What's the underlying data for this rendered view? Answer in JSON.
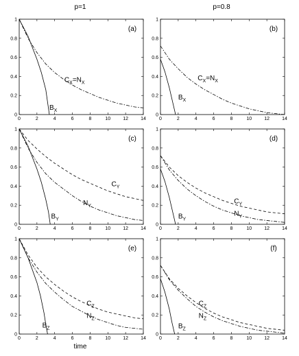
{
  "figure": {
    "column_titles": [
      "p=1",
      "p=0.8"
    ],
    "xlabel": "time"
  },
  "colors": {
    "axes": "#000000",
    "curve": "#000000",
    "background": "#ffffff"
  },
  "chart_data": [
    {
      "type": "line",
      "panel_label": "(a)",
      "column_title": "p=1",
      "xlim": [
        0,
        14
      ],
      "ylim": [
        0,
        1
      ],
      "xticks": [
        0,
        2,
        4,
        6,
        8,
        10,
        12,
        14
      ],
      "yticks": [
        0,
        0.2,
        0.4,
        0.6,
        0.8,
        1
      ],
      "series": [
        {
          "name": "B_X",
          "style": "solid",
          "x": [
            0,
            1,
            2,
            2.5,
            3,
            3.2,
            3.4
          ],
          "y": [
            1,
            0.82,
            0.58,
            0.44,
            0.26,
            0.13,
            0.0
          ]
        },
        {
          "name": "C_X=N_X",
          "style": "dash-dot",
          "x": [
            0,
            1,
            2,
            3,
            4,
            5,
            6,
            7,
            8,
            9,
            10,
            11,
            12,
            13,
            14
          ],
          "y": [
            1,
            0.8,
            0.65,
            0.53,
            0.44,
            0.37,
            0.31,
            0.26,
            0.22,
            0.18,
            0.15,
            0.12,
            0.1,
            0.08,
            0.07
          ]
        }
      ],
      "annotations": [
        {
          "main": "C",
          "sub": "X",
          "tail": "=N",
          "tail_sub": "X",
          "x": 5.1,
          "y": 0.34
        },
        {
          "main": "B",
          "sub": "X",
          "x": 3.4,
          "y": 0.05
        }
      ]
    },
    {
      "type": "line",
      "panel_label": "(b)",
      "column_title": "p=0.8",
      "xlim": [
        0,
        14
      ],
      "ylim": [
        0,
        1
      ],
      "xticks": [
        0,
        2,
        4,
        6,
        8,
        10,
        12,
        14
      ],
      "yticks": [
        0,
        0.2,
        0.4,
        0.6,
        0.8,
        1
      ],
      "series": [
        {
          "name": "B_X",
          "style": "solid",
          "x": [
            0,
            0.5,
            1,
            1.4,
            1.7
          ],
          "y": [
            0.58,
            0.45,
            0.28,
            0.12,
            0.0
          ]
        },
        {
          "name": "C_X=N_X",
          "style": "dash-dot",
          "x": [
            0,
            1,
            2,
            3,
            4,
            5,
            6,
            7,
            8,
            9,
            10,
            11,
            12,
            13,
            14
          ],
          "y": [
            0.72,
            0.58,
            0.48,
            0.39,
            0.32,
            0.26,
            0.21,
            0.16,
            0.12,
            0.09,
            0.06,
            0.04,
            0.02,
            0.01,
            0.0
          ]
        }
      ],
      "annotations": [
        {
          "main": "C",
          "sub": "X",
          "tail": "=N",
          "tail_sub": "X",
          "x": 4.2,
          "y": 0.36
        },
        {
          "main": "B",
          "sub": "X",
          "x": 2.0,
          "y": 0.16
        }
      ]
    },
    {
      "type": "line",
      "panel_label": "(c)",
      "column_title": "p=1",
      "xlim": [
        0,
        14
      ],
      "ylim": [
        0,
        1
      ],
      "xticks": [
        0,
        2,
        4,
        6,
        8,
        10,
        12,
        14
      ],
      "yticks": [
        0,
        0.2,
        0.4,
        0.6,
        0.8,
        1
      ],
      "series": [
        {
          "name": "B_Y",
          "style": "solid",
          "x": [
            0,
            1,
            2,
            2.5,
            3,
            3.3,
            3.5
          ],
          "y": [
            1,
            0.82,
            0.58,
            0.44,
            0.26,
            0.13,
            0.0
          ]
        },
        {
          "name": "C_Y",
          "style": "dashed",
          "x": [
            0,
            1,
            2,
            3,
            4,
            5,
            6,
            7,
            8,
            9,
            10,
            11,
            12,
            13,
            14
          ],
          "y": [
            1,
            0.88,
            0.79,
            0.71,
            0.64,
            0.58,
            0.52,
            0.47,
            0.43,
            0.39,
            0.35,
            0.32,
            0.29,
            0.27,
            0.25
          ]
        },
        {
          "name": "N_Y",
          "style": "dash-dot",
          "x": [
            0,
            1,
            2,
            3,
            4,
            5,
            6,
            7,
            8,
            9,
            10,
            11,
            12,
            13,
            14
          ],
          "y": [
            1,
            0.8,
            0.65,
            0.53,
            0.44,
            0.37,
            0.3,
            0.24,
            0.19,
            0.15,
            0.12,
            0.09,
            0.07,
            0.05,
            0.04
          ]
        }
      ],
      "annotations": [
        {
          "main": "C",
          "sub": "Y",
          "x": 10.4,
          "y": 0.4
        },
        {
          "main": "N",
          "sub": "Y",
          "x": 7.2,
          "y": 0.2
        },
        {
          "main": "B",
          "sub": "Y",
          "x": 3.6,
          "y": 0.06
        }
      ]
    },
    {
      "type": "line",
      "panel_label": "(d)",
      "column_title": "p=0.8",
      "xlim": [
        0,
        14
      ],
      "ylim": [
        0,
        1
      ],
      "xticks": [
        0,
        2,
        4,
        6,
        8,
        10,
        12,
        14
      ],
      "yticks": [
        0,
        0.2,
        0.4,
        0.6,
        0.8,
        1
      ],
      "series": [
        {
          "name": "B_Y",
          "style": "solid",
          "x": [
            0,
            0.5,
            1,
            1.4,
            1.7
          ],
          "y": [
            0.58,
            0.45,
            0.28,
            0.12,
            0.0
          ]
        },
        {
          "name": "C_Y",
          "style": "dashed",
          "x": [
            0,
            1,
            2,
            3,
            4,
            5,
            6,
            7,
            8,
            9,
            10,
            11,
            12,
            13,
            14
          ],
          "y": [
            0.72,
            0.6,
            0.51,
            0.44,
            0.38,
            0.33,
            0.29,
            0.25,
            0.22,
            0.19,
            0.17,
            0.15,
            0.13,
            0.12,
            0.11
          ]
        },
        {
          "name": "N_Y",
          "style": "dash-dot",
          "x": [
            0,
            1,
            2,
            3,
            4,
            5,
            6,
            7,
            8,
            9,
            10,
            11,
            12,
            13,
            14
          ],
          "y": [
            0.72,
            0.57,
            0.46,
            0.37,
            0.3,
            0.24,
            0.19,
            0.15,
            0.12,
            0.09,
            0.07,
            0.05,
            0.04,
            0.03,
            0.02
          ]
        }
      ],
      "annotations": [
        {
          "main": "C",
          "sub": "Y",
          "x": 8.3,
          "y": 0.22
        },
        {
          "main": "N",
          "sub": "Y",
          "x": 8.3,
          "y": 0.09
        },
        {
          "main": "B",
          "sub": "Y",
          "x": 2.0,
          "y": 0.06
        }
      ]
    },
    {
      "type": "line",
      "panel_label": "(e)",
      "column_title": "p=1",
      "xlim": [
        0,
        14
      ],
      "ylim": [
        0,
        1
      ],
      "xticks": [
        0,
        2,
        4,
        6,
        8,
        10,
        12,
        14
      ],
      "yticks": [
        0,
        0.2,
        0.4,
        0.6,
        0.8,
        1
      ],
      "series": [
        {
          "name": "B_Z",
          "style": "solid",
          "x": [
            0,
            1,
            2,
            2.4,
            2.8,
            3.0,
            3.2
          ],
          "y": [
            1,
            0.8,
            0.54,
            0.4,
            0.22,
            0.1,
            0.0
          ]
        },
        {
          "name": "C_Z",
          "style": "dashed",
          "x": [
            0,
            1,
            2,
            3,
            4,
            5,
            6,
            7,
            8,
            9,
            10,
            11,
            12,
            13,
            14
          ],
          "y": [
            1,
            0.83,
            0.7,
            0.6,
            0.52,
            0.45,
            0.39,
            0.34,
            0.3,
            0.26,
            0.23,
            0.21,
            0.19,
            0.17,
            0.16
          ]
        },
        {
          "name": "N_Z",
          "style": "dash-dot",
          "x": [
            0,
            1,
            2,
            3,
            4,
            5,
            6,
            7,
            8,
            9,
            10,
            11,
            12,
            13,
            14
          ],
          "y": [
            1,
            0.8,
            0.65,
            0.53,
            0.44,
            0.36,
            0.29,
            0.24,
            0.19,
            0.15,
            0.12,
            0.09,
            0.07,
            0.06,
            0.05
          ]
        }
      ],
      "annotations": [
        {
          "main": "C",
          "sub": "Z",
          "x": 7.6,
          "y": 0.3
        },
        {
          "main": "N",
          "sub": "Z",
          "x": 7.6,
          "y": 0.17
        },
        {
          "main": "B",
          "sub": "Z",
          "x": 2.6,
          "y": 0.07
        }
      ]
    },
    {
      "type": "line",
      "panel_label": "(f)",
      "column_title": "p=0.8",
      "xlim": [
        0,
        14
      ],
      "ylim": [
        0,
        1
      ],
      "xticks": [
        0,
        2,
        4,
        6,
        8,
        10,
        12,
        14
      ],
      "yticks": [
        0,
        0.2,
        0.4,
        0.6,
        0.8,
        1
      ],
      "series": [
        {
          "name": "B_Z",
          "style": "solid",
          "x": [
            0,
            0.5,
            1,
            1.3,
            1.6
          ],
          "y": [
            0.58,
            0.44,
            0.26,
            0.12,
            0.0
          ]
        },
        {
          "name": "C_Z",
          "style": "dashed",
          "x": [
            0,
            1,
            2,
            3,
            4,
            5,
            6,
            7,
            8,
            9,
            10,
            11,
            12,
            13,
            14
          ],
          "y": [
            0.72,
            0.58,
            0.48,
            0.4,
            0.33,
            0.27,
            0.22,
            0.18,
            0.15,
            0.12,
            0.1,
            0.08,
            0.06,
            0.05,
            0.04
          ]
        },
        {
          "name": "N_Z",
          "style": "dash-dot",
          "x": [
            0,
            1,
            2,
            3,
            4,
            5,
            6,
            7,
            8,
            9,
            10,
            11,
            12,
            13,
            14
          ],
          "y": [
            0.72,
            0.57,
            0.46,
            0.37,
            0.29,
            0.23,
            0.18,
            0.14,
            0.11,
            0.08,
            0.06,
            0.04,
            0.03,
            0.02,
            0.01
          ]
        }
      ],
      "annotations": [
        {
          "main": "C",
          "sub": "Z",
          "x": 4.3,
          "y": 0.3
        },
        {
          "main": "N",
          "sub": "Z",
          "x": 4.3,
          "y": 0.17
        },
        {
          "main": "B",
          "sub": "Z",
          "x": 2.0,
          "y": 0.06
        }
      ]
    }
  ]
}
